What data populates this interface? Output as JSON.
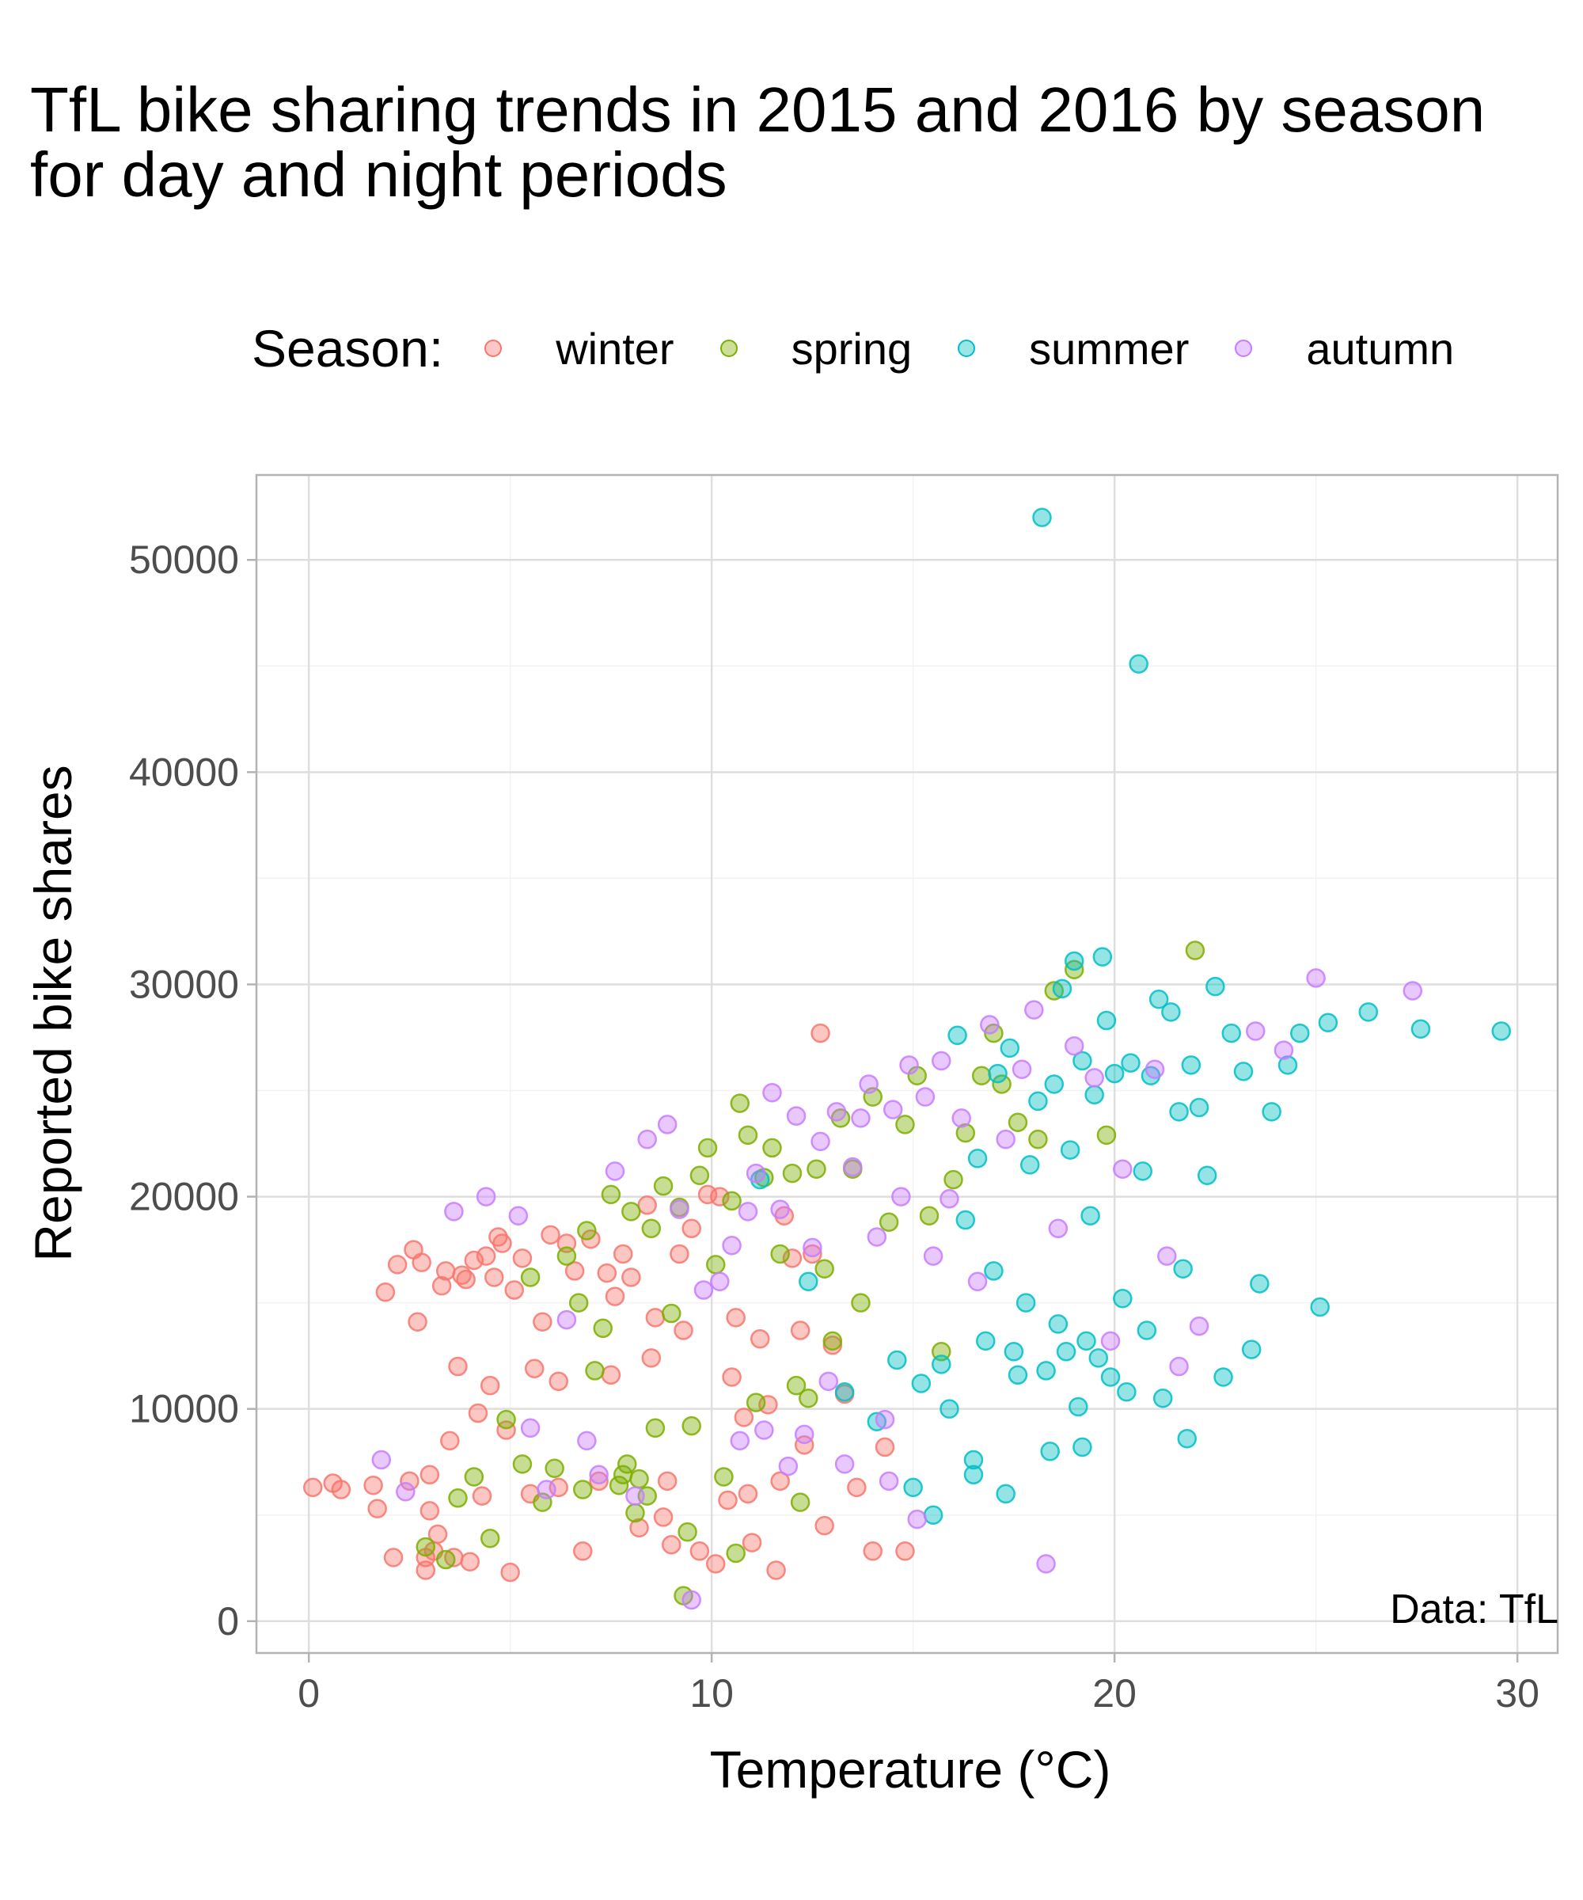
{
  "chart_data": {
    "type": "scatter",
    "title_lines": [
      "TfL bike sharing trends in 2015 and 2016 by season",
      "for day and night periods"
    ],
    "xlabel": "Temperature (°C)",
    "ylabel": "Reported bike shares",
    "caption": "Data: TfL",
    "legend_title": "Season:",
    "legend_position": "top",
    "grid": true,
    "xlim": [
      -1.3,
      31
    ],
    "ylim": [
      -1500,
      54000
    ],
    "xticks": [
      0,
      10,
      20,
      30
    ],
    "yticks": [
      0,
      10000,
      20000,
      30000,
      40000,
      50000
    ],
    "series": [
      {
        "name": "winter",
        "color": "#F8766D",
        "points": [
          [
            0.1,
            6300
          ],
          [
            0.6,
            6500
          ],
          [
            0.8,
            6200
          ],
          [
            1.6,
            6400
          ],
          [
            1.7,
            5300
          ],
          [
            1.9,
            15500
          ],
          [
            2.1,
            3000
          ],
          [
            2.2,
            16800
          ],
          [
            2.5,
            6600
          ],
          [
            2.6,
            17500
          ],
          [
            2.7,
            14100
          ],
          [
            2.8,
            16900
          ],
          [
            2.9,
            3000
          ],
          [
            2.9,
            2400
          ],
          [
            3.0,
            6900
          ],
          [
            3.0,
            5200
          ],
          [
            3.1,
            3300
          ],
          [
            3.2,
            4100
          ],
          [
            3.3,
            15800
          ],
          [
            3.4,
            16500
          ],
          [
            3.5,
            8500
          ],
          [
            3.6,
            3000
          ],
          [
            3.7,
            12000
          ],
          [
            3.8,
            16300
          ],
          [
            3.9,
            16100
          ],
          [
            4.0,
            2800
          ],
          [
            4.1,
            17000
          ],
          [
            4.2,
            9800
          ],
          [
            4.3,
            5900
          ],
          [
            4.4,
            17200
          ],
          [
            4.5,
            11100
          ],
          [
            4.6,
            16200
          ],
          [
            4.7,
            18100
          ],
          [
            4.8,
            17800
          ],
          [
            4.9,
            9000
          ],
          [
            5.0,
            2300
          ],
          [
            5.1,
            15600
          ],
          [
            5.3,
            17100
          ],
          [
            5.5,
            6000
          ],
          [
            5.6,
            11900
          ],
          [
            5.8,
            14100
          ],
          [
            6.0,
            18200
          ],
          [
            6.2,
            6300
          ],
          [
            6.4,
            17800
          ],
          [
            6.6,
            16500
          ],
          [
            6.8,
            3300
          ],
          [
            7.0,
            18000
          ],
          [
            7.2,
            6600
          ],
          [
            7.4,
            16400
          ],
          [
            7.6,
            15300
          ],
          [
            7.8,
            17300
          ],
          [
            8.0,
            16200
          ],
          [
            8.2,
            4400
          ],
          [
            8.4,
            19600
          ],
          [
            8.5,
            12400
          ],
          [
            8.6,
            14300
          ],
          [
            8.8,
            4900
          ],
          [
            9.0,
            3600
          ],
          [
            9.2,
            17300
          ],
          [
            9.3,
            13700
          ],
          [
            9.5,
            18500
          ],
          [
            9.7,
            3300
          ],
          [
            9.9,
            20100
          ],
          [
            10.1,
            2700
          ],
          [
            10.2,
            20000
          ],
          [
            10.4,
            5700
          ],
          [
            10.5,
            11500
          ],
          [
            10.6,
            14300
          ],
          [
            10.8,
            9600
          ],
          [
            11.0,
            3700
          ],
          [
            11.2,
            13300
          ],
          [
            11.4,
            10200
          ],
          [
            11.6,
            2400
          ],
          [
            11.8,
            19100
          ],
          [
            12.0,
            17100
          ],
          [
            12.2,
            13700
          ],
          [
            12.3,
            8300
          ],
          [
            12.5,
            17300
          ],
          [
            12.7,
            27700
          ],
          [
            12.8,
            4500
          ],
          [
            13.0,
            13000
          ],
          [
            13.3,
            10700
          ],
          [
            13.6,
            6300
          ],
          [
            14.0,
            3300
          ],
          [
            14.3,
            8200
          ],
          [
            14.8,
            3300
          ],
          [
            6.2,
            11300
          ],
          [
            7.5,
            11600
          ],
          [
            8.9,
            6600
          ],
          [
            10.9,
            6000
          ],
          [
            11.7,
            6600
          ]
        ]
      },
      {
        "name": "spring",
        "color": "#7CAE00",
        "points": [
          [
            2.9,
            3500
          ],
          [
            3.4,
            2900
          ],
          [
            3.7,
            5800
          ],
          [
            4.1,
            6800
          ],
          [
            4.5,
            3900
          ],
          [
            4.9,
            9500
          ],
          [
            5.3,
            7400
          ],
          [
            5.5,
            16200
          ],
          [
            5.8,
            5600
          ],
          [
            6.1,
            7200
          ],
          [
            6.4,
            17200
          ],
          [
            6.7,
            15000
          ],
          [
            6.9,
            18400
          ],
          [
            7.1,
            11800
          ],
          [
            7.3,
            13800
          ],
          [
            7.5,
            20100
          ],
          [
            7.7,
            6400
          ],
          [
            7.8,
            6900
          ],
          [
            7.9,
            7400
          ],
          [
            8.0,
            19300
          ],
          [
            8.2,
            6700
          ],
          [
            8.4,
            5900
          ],
          [
            8.5,
            18500
          ],
          [
            8.6,
            9100
          ],
          [
            8.8,
            20500
          ],
          [
            9.0,
            14500
          ],
          [
            9.2,
            19500
          ],
          [
            9.3,
            1200
          ],
          [
            9.5,
            9200
          ],
          [
            9.7,
            21000
          ],
          [
            9.9,
            22300
          ],
          [
            10.1,
            16800
          ],
          [
            10.3,
            6800
          ],
          [
            10.5,
            19800
          ],
          [
            10.7,
            24400
          ],
          [
            10.9,
            22900
          ],
          [
            11.1,
            10300
          ],
          [
            11.3,
            20900
          ],
          [
            11.5,
            22300
          ],
          [
            11.7,
            17300
          ],
          [
            12.0,
            21100
          ],
          [
            12.2,
            5600
          ],
          [
            12.4,
            10500
          ],
          [
            12.6,
            21300
          ],
          [
            12.8,
            16600
          ],
          [
            13.0,
            13200
          ],
          [
            13.2,
            23700
          ],
          [
            13.5,
            21300
          ],
          [
            13.7,
            15000
          ],
          [
            14.0,
            24700
          ],
          [
            14.4,
            18800
          ],
          [
            14.8,
            23400
          ],
          [
            15.1,
            25700
          ],
          [
            15.4,
            19100
          ],
          [
            15.7,
            12700
          ],
          [
            16.0,
            20800
          ],
          [
            16.3,
            23000
          ],
          [
            16.7,
            25700
          ],
          [
            17.0,
            27700
          ],
          [
            17.2,
            25300
          ],
          [
            17.6,
            23500
          ],
          [
            18.1,
            22700
          ],
          [
            18.5,
            29700
          ],
          [
            19.0,
            30700
          ],
          [
            19.8,
            22900
          ],
          [
            22.0,
            31600
          ],
          [
            6.8,
            6200
          ],
          [
            8.1,
            5100
          ],
          [
            9.4,
            4200
          ],
          [
            10.6,
            3200
          ],
          [
            12.1,
            11100
          ]
        ]
      },
      {
        "name": "summer",
        "color": "#00BFC4",
        "points": [
          [
            11.2,
            20800
          ],
          [
            12.4,
            16000
          ],
          [
            13.3,
            10800
          ],
          [
            14.1,
            9400
          ],
          [
            14.6,
            12300
          ],
          [
            15.0,
            6300
          ],
          [
            15.2,
            11200
          ],
          [
            15.5,
            5000
          ],
          [
            15.7,
            12100
          ],
          [
            15.9,
            10000
          ],
          [
            16.1,
            27600
          ],
          [
            16.3,
            18900
          ],
          [
            16.5,
            7600
          ],
          [
            16.6,
            21800
          ],
          [
            16.8,
            13200
          ],
          [
            17.0,
            16500
          ],
          [
            17.1,
            25800
          ],
          [
            17.3,
            6000
          ],
          [
            17.4,
            27000
          ],
          [
            17.6,
            11600
          ],
          [
            17.8,
            15000
          ],
          [
            17.9,
            21500
          ],
          [
            18.1,
            24500
          ],
          [
            18.2,
            52000
          ],
          [
            18.3,
            11800
          ],
          [
            18.4,
            8000
          ],
          [
            18.5,
            25300
          ],
          [
            18.6,
            14000
          ],
          [
            18.7,
            29800
          ],
          [
            18.8,
            12700
          ],
          [
            18.9,
            22200
          ],
          [
            19.0,
            31100
          ],
          [
            19.1,
            10100
          ],
          [
            19.2,
            26400
          ],
          [
            19.3,
            13200
          ],
          [
            19.4,
            19100
          ],
          [
            19.5,
            24800
          ],
          [
            19.6,
            12400
          ],
          [
            19.7,
            31300
          ],
          [
            19.8,
            28300
          ],
          [
            19.9,
            11500
          ],
          [
            20.0,
            25800
          ],
          [
            20.2,
            15200
          ],
          [
            20.4,
            26300
          ],
          [
            20.6,
            45100
          ],
          [
            20.7,
            21200
          ],
          [
            20.8,
            13700
          ],
          [
            20.9,
            25700
          ],
          [
            21.1,
            29300
          ],
          [
            21.2,
            10500
          ],
          [
            21.4,
            28700
          ],
          [
            21.6,
            24000
          ],
          [
            21.7,
            16600
          ],
          [
            21.8,
            8600
          ],
          [
            21.9,
            26200
          ],
          [
            22.1,
            24200
          ],
          [
            22.3,
            21000
          ],
          [
            22.5,
            29900
          ],
          [
            22.7,
            11500
          ],
          [
            22.9,
            27700
          ],
          [
            23.2,
            25900
          ],
          [
            23.4,
            12800
          ],
          [
            23.6,
            15900
          ],
          [
            23.9,
            24000
          ],
          [
            24.3,
            26200
          ],
          [
            24.6,
            27700
          ],
          [
            25.1,
            14800
          ],
          [
            25.3,
            28200
          ],
          [
            26.3,
            28700
          ],
          [
            27.6,
            27900
          ],
          [
            29.6,
            27800
          ],
          [
            17.5,
            12700
          ],
          [
            19.2,
            8200
          ],
          [
            20.3,
            10800
          ],
          [
            16.5,
            6900
          ]
        ]
      },
      {
        "name": "autumn",
        "color": "#C77CFF",
        "points": [
          [
            1.8,
            7600
          ],
          [
            2.4,
            6100
          ],
          [
            3.6,
            19300
          ],
          [
            4.4,
            20000
          ],
          [
            5.2,
            19100
          ],
          [
            5.5,
            9100
          ],
          [
            5.9,
            6200
          ],
          [
            6.4,
            14200
          ],
          [
            6.9,
            8500
          ],
          [
            7.2,
            6900
          ],
          [
            7.6,
            21200
          ],
          [
            8.1,
            5900
          ],
          [
            8.4,
            22700
          ],
          [
            8.9,
            23400
          ],
          [
            9.2,
            19400
          ],
          [
            9.5,
            1000
          ],
          [
            9.8,
            15600
          ],
          [
            10.2,
            16000
          ],
          [
            10.5,
            17700
          ],
          [
            10.7,
            8500
          ],
          [
            10.9,
            19300
          ],
          [
            11.1,
            21100
          ],
          [
            11.3,
            9000
          ],
          [
            11.5,
            24900
          ],
          [
            11.7,
            19400
          ],
          [
            11.9,
            7300
          ],
          [
            12.1,
            23800
          ],
          [
            12.3,
            8800
          ],
          [
            12.5,
            17600
          ],
          [
            12.7,
            22600
          ],
          [
            12.9,
            11300
          ],
          [
            13.1,
            24000
          ],
          [
            13.3,
            7400
          ],
          [
            13.5,
            21400
          ],
          [
            13.7,
            23700
          ],
          [
            13.9,
            25300
          ],
          [
            14.1,
            18100
          ],
          [
            14.3,
            9500
          ],
          [
            14.5,
            24100
          ],
          [
            14.7,
            20000
          ],
          [
            14.9,
            26200
          ],
          [
            15.1,
            4800
          ],
          [
            15.3,
            24700
          ],
          [
            15.5,
            17200
          ],
          [
            15.7,
            26400
          ],
          [
            15.9,
            19900
          ],
          [
            16.2,
            23700
          ],
          [
            16.6,
            16000
          ],
          [
            16.9,
            28100
          ],
          [
            17.3,
            22700
          ],
          [
            17.7,
            26000
          ],
          [
            18.0,
            28800
          ],
          [
            18.3,
            2700
          ],
          [
            18.6,
            18500
          ],
          [
            19.0,
            27100
          ],
          [
            19.5,
            25600
          ],
          [
            20.2,
            21300
          ],
          [
            21.0,
            26000
          ],
          [
            21.6,
            12000
          ],
          [
            22.1,
            13900
          ],
          [
            23.5,
            27800
          ],
          [
            24.2,
            26900
          ],
          [
            25.0,
            30300
          ],
          [
            27.4,
            29700
          ],
          [
            19.9,
            13200
          ],
          [
            21.3,
            17200
          ],
          [
            14.4,
            6600
          ]
        ]
      }
    ]
  }
}
